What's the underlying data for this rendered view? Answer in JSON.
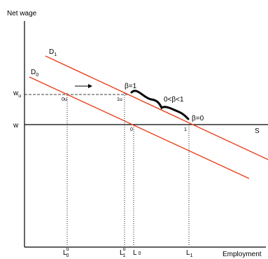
{
  "diagram": {
    "y_axis_label": "Net wage",
    "x_axis_label": "Employment",
    "supply_label": "S",
    "demand_labels": {
      "d1": {
        "main": "D",
        "sub": "1"
      },
      "d0": {
        "main": "D",
        "sub": "0"
      }
    },
    "wage_labels": {
      "wu": {
        "main": "w",
        "sub": "u"
      },
      "w": "w"
    },
    "points": {
      "0u": "0u",
      "1u": "1u",
      "zero": "0",
      "one": "1"
    },
    "beta_labels": {
      "beta_one": "β=1",
      "beta_mid": "0<β<1",
      "beta_zero": "β=0"
    },
    "employment_ticks": {
      "l0u": {
        "main": "L",
        "sub": "0",
        "sup": "u"
      },
      "l1u": {
        "main": "L",
        "sub": "1",
        "sup": "u"
      },
      "l0": {
        "main": "L",
        "sub": "0"
      },
      "l1": {
        "main": "L",
        "sub": "1"
      }
    },
    "colors": {
      "demand_curves": "#e8401c",
      "axes": "#000000",
      "guides": "#000000"
    }
  }
}
